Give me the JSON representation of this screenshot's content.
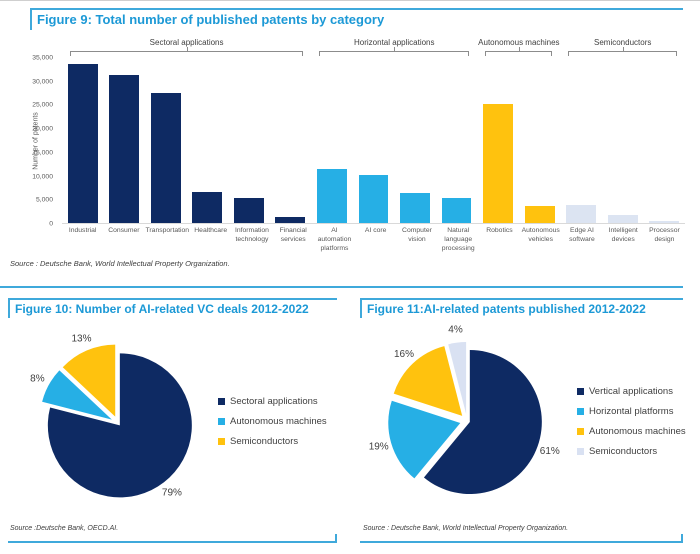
{
  "figure9": {
    "title": "Figure 9: Total number of published patents by category",
    "source": "Source : Deutsche Bank, World Intellectual Property Organization.",
    "ylabel": "Number of patents",
    "chart_data": {
      "type": "bar",
      "title": "Total number of published patents by category",
      "ylabel": "Number of patents",
      "ylim": [
        0,
        35000
      ],
      "ytick_labels": [
        "0",
        "5,000",
        "10,000",
        "15,000",
        "20,000",
        "25,000",
        "30,000",
        "35,000"
      ],
      "grid": false,
      "groups": [
        {
          "label": "Sectoral applications",
          "from": 0,
          "to": 5
        },
        {
          "label": "Horizontal applications",
          "from": 6,
          "to": 9
        },
        {
          "label": "Autonomous machines",
          "from": 10,
          "to": 11
        },
        {
          "label": "Semiconductors",
          "from": 12,
          "to": 14
        }
      ],
      "bars": [
        {
          "category": "Industrial",
          "value": 33500,
          "color": "#0e2a63"
        },
        {
          "category": "Consumer",
          "value": 31300,
          "color": "#0e2a63"
        },
        {
          "category": "Transportation",
          "value": 27500,
          "color": "#0e2a63"
        },
        {
          "category": "Healthcare",
          "value": 6500,
          "color": "#0e2a63"
        },
        {
          "category": "Information technology",
          "value": 5300,
          "color": "#0e2a63"
        },
        {
          "category": "Financial services",
          "value": 1200,
          "color": "#0e2a63"
        },
        {
          "category": "AI automation platforms",
          "value": 11300,
          "color": "#26afe5"
        },
        {
          "category": "AI core",
          "value": 10200,
          "color": "#26afe5"
        },
        {
          "category": "Computer vision",
          "value": 6400,
          "color": "#26afe5"
        },
        {
          "category": "Natural language processing",
          "value": 5200,
          "color": "#26afe5"
        },
        {
          "category": "Robotics",
          "value": 25000,
          "color": "#ffc20e"
        },
        {
          "category": "Autonomous vehicles",
          "value": 3500,
          "color": "#ffc20e"
        },
        {
          "category": "Edge AI software",
          "value": 3900,
          "color": "#dce4f2"
        },
        {
          "category": "Intelligent devices",
          "value": 1800,
          "color": "#dce4f2"
        },
        {
          "category": "Processor design",
          "value": 500,
          "color": "#dce4f2"
        }
      ]
    }
  },
  "figure10": {
    "title": "Figure 10: Number of AI-related VC deals 2012-2022",
    "source": "Source :Deutsche Bank, OECD.AI.",
    "chart_data": {
      "type": "pie",
      "title": "Number of AI-related VC deals 2012-2022",
      "legend_position": "right",
      "slices": [
        {
          "label": "Sectoral applications",
          "pct": 79,
          "color": "#0e2a63"
        },
        {
          "label": "Autonomous machines",
          "pct": 8,
          "color": "#26afe5"
        },
        {
          "label": "Semiconductors",
          "pct": 13,
          "color": "#ffc20e"
        }
      ]
    }
  },
  "figure11": {
    "title": "Figure 11:AI-related patents published 2012-2022",
    "source": "Source : Deutsche Bank, World Intellectual Property Organization.",
    "chart_data": {
      "type": "pie",
      "title": "AI-related patents published 2012-2022",
      "legend_position": "right",
      "slices": [
        {
          "label": "Vertical applications",
          "pct": 61,
          "color": "#0e2a63"
        },
        {
          "label": "Horizontal platforms",
          "pct": 19,
          "color": "#26afe5"
        },
        {
          "label": "Autonomous machines",
          "pct": 16,
          "color": "#ffc20e"
        },
        {
          "label": "Semiconductors",
          "pct": 4,
          "color": "#d9e1f2"
        }
      ]
    }
  }
}
